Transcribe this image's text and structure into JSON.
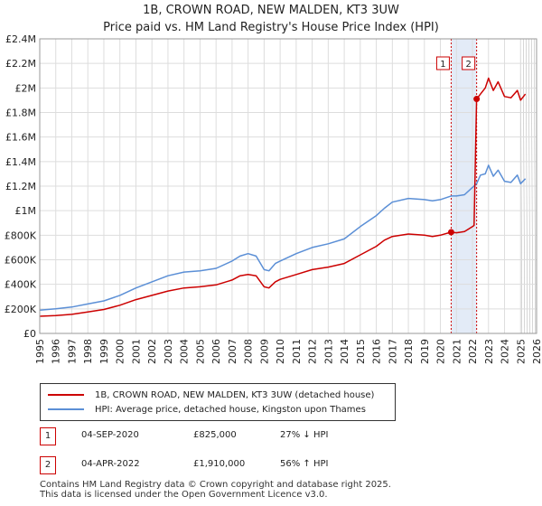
{
  "title_lines": [
    "1B, CROWN ROAD, NEW MALDEN, KT3 3UW",
    "Price paid vs. HM Land Registry's House Price Index (HPI)"
  ],
  "chart_data": {
    "type": "line",
    "title": "1B, CROWN ROAD, NEW MALDEN, KT3 3UW — Price paid vs. HM Land Registry's House Price Index (HPI)",
    "xlabel": "",
    "ylabel": "",
    "xlim": [
      1995,
      2026
    ],
    "ylim": [
      0,
      2400000
    ],
    "grid": true,
    "x_ticks": [
      "1995",
      "1996",
      "1997",
      "1998",
      "1999",
      "2000",
      "2001",
      "2002",
      "2003",
      "2004",
      "2005",
      "2006",
      "2007",
      "2008",
      "2009",
      "2010",
      "2011",
      "2012",
      "2013",
      "2014",
      "2015",
      "2016",
      "2017",
      "2018",
      "2019",
      "2020",
      "2021",
      "2022",
      "2023",
      "2024",
      "2025",
      "2026"
    ],
    "y_ticks": [
      {
        "value": 0,
        "label": "£0"
      },
      {
        "value": 200000,
        "label": "£200K"
      },
      {
        "value": 400000,
        "label": "£400K"
      },
      {
        "value": 600000,
        "label": "£600K"
      },
      {
        "value": 800000,
        "label": "£800K"
      },
      {
        "value": 1000000,
        "label": "£1M"
      },
      {
        "value": 1200000,
        "label": "£1.2M"
      },
      {
        "value": 1400000,
        "label": "£1.4M"
      },
      {
        "value": 1600000,
        "label": "£1.6M"
      },
      {
        "value": 1800000,
        "label": "£1.8M"
      },
      {
        "value": 2000000,
        "label": "£2M"
      },
      {
        "value": 2200000,
        "label": "£2.2M"
      },
      {
        "value": 2400000,
        "label": "£2.4M"
      }
    ],
    "series": [
      {
        "name": "1B, CROWN ROAD, NEW MALDEN, KT3 3UW (detached house)",
        "color": "#cc0000",
        "x": [
          1995,
          1996,
          1997,
          1998,
          1999,
          2000,
          2001,
          2002,
          2003,
          2004,
          2005,
          2006,
          2007,
          2007.5,
          2008,
          2008.5,
          2009,
          2009.3,
          2009.7,
          2010,
          2011,
          2012,
          2013,
          2014,
          2015,
          2016,
          2016.5,
          2017,
          2018,
          2019,
          2019.5,
          2020,
          2020.67,
          2021,
          2021.5,
          2022,
          2022.1,
          2022.26,
          2022.5,
          2022.8,
          2023,
          2023.3,
          2023.6,
          2024,
          2024.4,
          2024.8,
          2025,
          2025.3
        ],
        "y": [
          140000,
          145000,
          155000,
          175000,
          195000,
          230000,
          275000,
          310000,
          345000,
          370000,
          380000,
          395000,
          435000,
          470000,
          480000,
          470000,
          380000,
          370000,
          420000,
          440000,
          480000,
          520000,
          540000,
          570000,
          640000,
          710000,
          760000,
          790000,
          810000,
          800000,
          790000,
          800000,
          825000,
          820000,
          830000,
          870000,
          880000,
          1910000,
          1950000,
          2000000,
          2080000,
          1980000,
          2050000,
          1930000,
          1920000,
          1980000,
          1900000,
          1950000
        ]
      },
      {
        "name": "HPI: Average price, detached house, Kingston upon Thames",
        "color": "#5b8fd6",
        "x": [
          1995,
          1996,
          1997,
          1998,
          1999,
          2000,
          2001,
          2002,
          2003,
          2004,
          2005,
          2006,
          2007,
          2007.5,
          2008,
          2008.5,
          2009,
          2009.3,
          2009.7,
          2010,
          2011,
          2012,
          2013,
          2014,
          2015,
          2016,
          2016.5,
          2017,
          2018,
          2019,
          2019.5,
          2020,
          2020.67,
          2021,
          2021.5,
          2022,
          2022.26,
          2022.5,
          2022.8,
          2023,
          2023.3,
          2023.6,
          2024,
          2024.4,
          2024.8,
          2025,
          2025.3
        ],
        "y": [
          190000,
          200000,
          215000,
          240000,
          265000,
          310000,
          370000,
          420000,
          470000,
          500000,
          510000,
          530000,
          590000,
          630000,
          650000,
          630000,
          520000,
          510000,
          570000,
          590000,
          650000,
          700000,
          730000,
          770000,
          870000,
          960000,
          1020000,
          1070000,
          1100000,
          1090000,
          1080000,
          1090000,
          1120000,
          1120000,
          1130000,
          1190000,
          1220000,
          1290000,
          1300000,
          1370000,
          1280000,
          1330000,
          1240000,
          1230000,
          1290000,
          1220000,
          1260000
        ]
      }
    ],
    "annotations": [
      {
        "id": "1",
        "x": 2020.67,
        "y": 825000
      },
      {
        "id": "2",
        "x": 2022.26,
        "y": 1910000
      }
    ],
    "shaded_range": [
      2020.67,
      2022.26
    ],
    "forecast_from": 2025.0
  },
  "legend": {
    "items": [
      {
        "label": "1B, CROWN ROAD, NEW MALDEN, KT3 3UW (detached house)",
        "color": "#cc0000"
      },
      {
        "label": "HPI: Average price, detached house, Kingston upon Thames",
        "color": "#5b8fd6"
      }
    ]
  },
  "transactions": [
    {
      "id": "1",
      "date": "04-SEP-2020",
      "price": "£825,000",
      "delta": "27% ↓ HPI"
    },
    {
      "id": "2",
      "date": "04-APR-2022",
      "price": "£1,910,000",
      "delta": "56% ↑ HPI"
    }
  ],
  "footer_lines": [
    "Contains HM Land Registry data © Crown copyright and database right 2025.",
    "This data is licensed under the Open Government Licence v3.0."
  ]
}
